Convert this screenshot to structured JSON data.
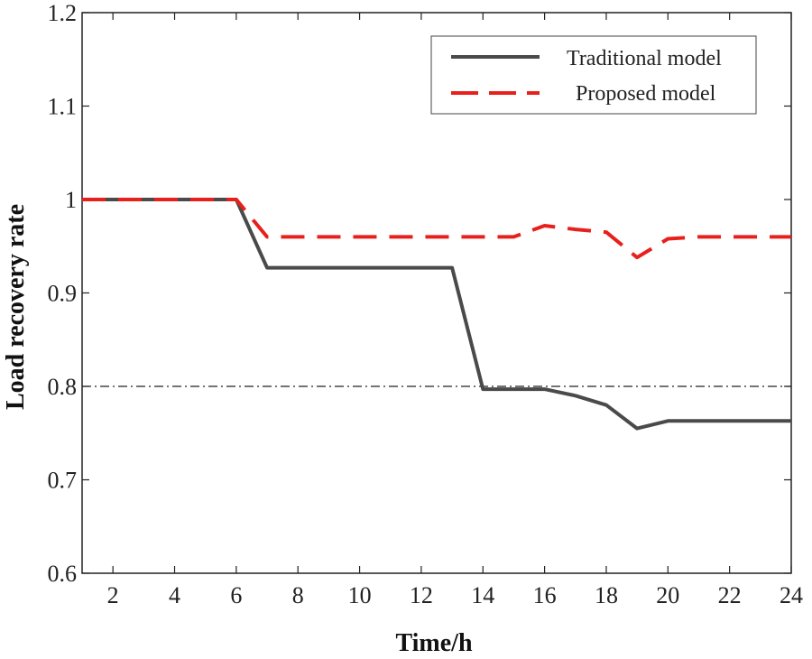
{
  "chart_data": {
    "type": "line",
    "title": "",
    "xlabel": "Time/h",
    "ylabel": "Load recovery rate",
    "xlim": [
      1,
      24
    ],
    "ylim": [
      0.6,
      1.2
    ],
    "xticks": [
      2,
      4,
      6,
      8,
      10,
      12,
      14,
      16,
      18,
      20,
      22,
      24
    ],
    "yticks": [
      0.6,
      0.7,
      0.8,
      0.9,
      1,
      1.1,
      1.2
    ],
    "ytick_labels": [
      "0.6",
      "0.7",
      "0.8",
      "0.9",
      "1",
      "1.1",
      "1.2"
    ],
    "grid": false,
    "legend_position": "top-right",
    "reference_line": {
      "y": 0.8,
      "style": "dash-dot",
      "color": "#222222"
    },
    "series": [
      {
        "name": "Traditional model",
        "color": "#4a4a4a",
        "style": "solid",
        "x": [
          1,
          2,
          3,
          4,
          5,
          6,
          7,
          8,
          9,
          10,
          11,
          12,
          13,
          14,
          15,
          16,
          17,
          18,
          19,
          20,
          21,
          22,
          23,
          24
        ],
        "values": [
          1,
          1,
          1,
          1,
          1,
          1,
          0.927,
          0.927,
          0.927,
          0.927,
          0.927,
          0.927,
          0.927,
          0.797,
          0.797,
          0.797,
          0.79,
          0.78,
          0.755,
          0.763,
          0.763,
          0.763,
          0.763,
          0.763
        ]
      },
      {
        "name": "Proposed model",
        "color": "#e8201c",
        "style": "dashed",
        "x": [
          1,
          2,
          3,
          4,
          5,
          6,
          7,
          8,
          9,
          10,
          11,
          12,
          13,
          14,
          15,
          16,
          17,
          18,
          19,
          20,
          21,
          22,
          23,
          24
        ],
        "values": [
          1,
          1,
          1,
          1,
          1,
          1,
          0.96,
          0.96,
          0.96,
          0.96,
          0.96,
          0.96,
          0.96,
          0.96,
          0.96,
          0.972,
          0.968,
          0.965,
          0.938,
          0.958,
          0.96,
          0.96,
          0.96,
          0.96
        ]
      }
    ]
  }
}
